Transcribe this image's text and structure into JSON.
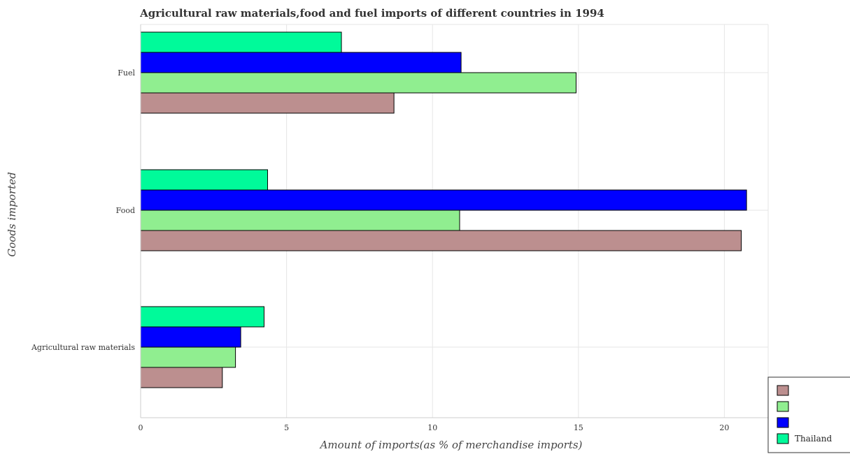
{
  "chart_data": {
    "type": "bar",
    "orientation": "horizontal",
    "title": "Agricultural raw materials,food and fuel imports of different countries in 1994",
    "xlabel": "Amount of imports(as % of merchandise imports)",
    "ylabel": "Goods imported",
    "categories": [
      "Agricultural raw materials",
      "Food",
      "Fuel"
    ],
    "series": [
      {
        "name": "",
        "color": "#bc8f8f",
        "values": [
          2.8,
          20.58,
          8.68
        ]
      },
      {
        "name": "",
        "color": "#90ee90",
        "values": [
          3.25,
          10.93,
          14.92
        ]
      },
      {
        "name": "",
        "color": "#0000ff",
        "values": [
          3.43,
          20.76,
          10.98
        ]
      },
      {
        "name": "Thailand",
        "color": "#00fa9a",
        "values": [
          4.23,
          4.35,
          6.88
        ]
      }
    ],
    "xlim": [
      0,
      21.5
    ],
    "xticks": [
      0,
      5,
      10,
      15,
      20
    ],
    "grid": true,
    "legend_position": "bottom-right"
  }
}
